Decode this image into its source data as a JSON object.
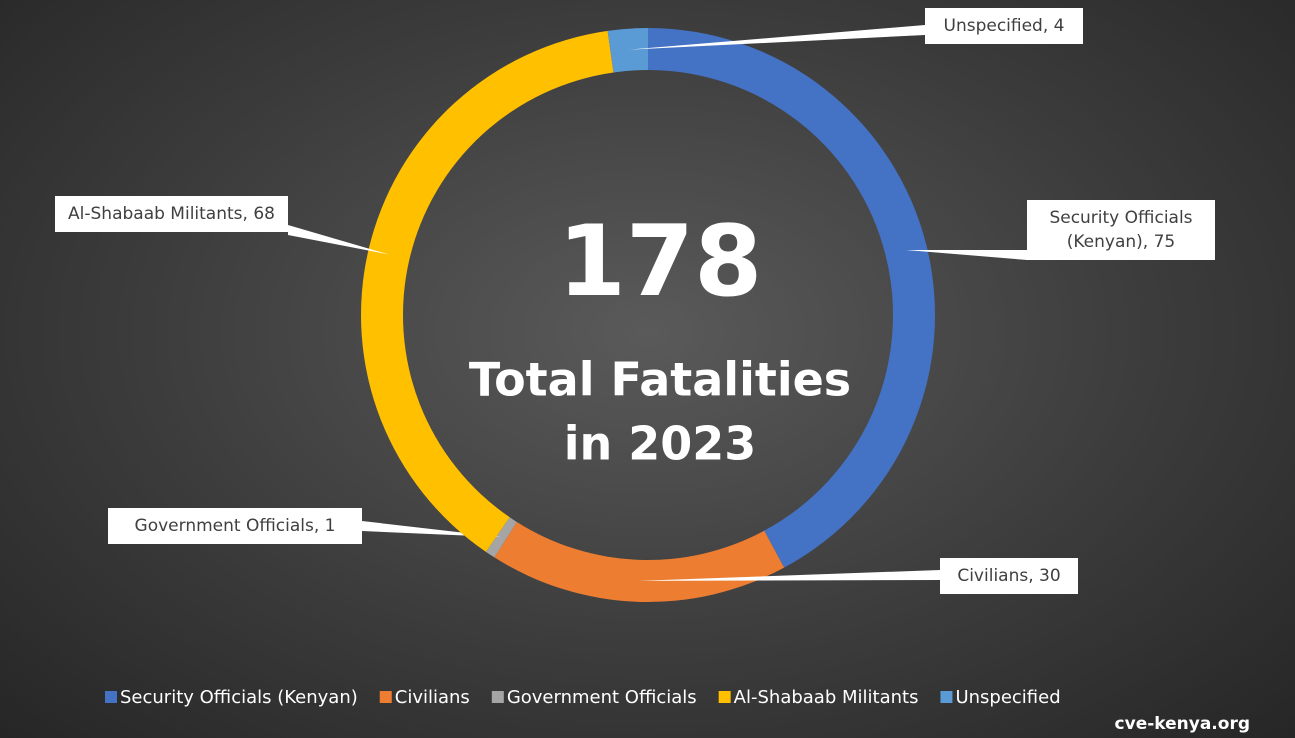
{
  "chart_data": {
    "type": "donut",
    "categories": [
      "Security Officials (Kenyan)",
      "Civilians",
      "Government Officials",
      "Al-Shabaab Militants",
      "Unspecified"
    ],
    "values": [
      75,
      30,
      1,
      68,
      4
    ],
    "value_labels": [
      "Security Officials (Kenyan), 75",
      "Civilians, 30",
      "Government Officials, 1",
      "Al-Shabaab Militants, 68",
      "Unspecified, 4"
    ],
    "colors": [
      "#4472c4",
      "#ed7d31",
      "#a5a5a5",
      "#ffc000",
      "#5b9bd5"
    ],
    "center_text": [
      "178",
      "Total Fatalities",
      "in 2023"
    ],
    "source": "cve-kenya.org",
    "legend": "bottom"
  }
}
